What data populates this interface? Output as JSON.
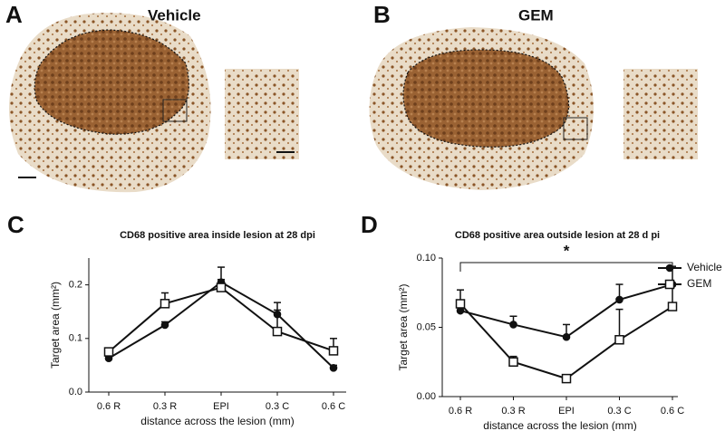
{
  "panels": {
    "a": {
      "label": "A",
      "title": "Vehicle"
    },
    "b": {
      "label": "B",
      "title": "GEM"
    }
  },
  "chart_data": [
    {
      "type": "line",
      "panel": "C",
      "title": "CD68 positive area inside lesion at 28 dpi",
      "ylabel": "Target area (mm²)",
      "xlabel": "distance across the lesion (mm)",
      "categories": [
        "0.6 R",
        "0.3 R",
        "EPI",
        "0.3 C",
        "0.6 C"
      ],
      "ylim": [
        0,
        0.25
      ],
      "yticks": [
        {
          "value": 0,
          "label": "0.0"
        },
        0.1,
        0.2
      ],
      "legend": false,
      "series": [
        {
          "name": "Vehicle",
          "color": "#111111",
          "marker": "circle",
          "values": [
            0.063,
            0.125,
            0.205,
            0.145,
            0.045
          ],
          "errors": [
            0.004,
            0.006,
            0.028,
            0.022,
            0.005
          ]
        },
        {
          "name": "GEM",
          "color": "#111111",
          "marker": "square",
          "values": [
            0.075,
            0.165,
            0.195,
            0.113,
            0.077
          ],
          "errors": [
            0.005,
            0.02,
            0.015,
            0.04,
            0.023
          ]
        }
      ]
    },
    {
      "type": "line",
      "panel": "D",
      "title": "CD68 positive area outside lesion at 28 d pi",
      "ylabel": "Target area (mm²)",
      "xlabel": "distance across the lesion (mm)",
      "categories": [
        "0.6 R",
        "0.3 R",
        "EPI",
        "0.3 C",
        "0.6 C"
      ],
      "ylim": [
        0,
        0.1
      ],
      "yticks": [
        {
          "value": 0,
          "label": "0.00"
        },
        0.05,
        {
          "value": 0.1,
          "label": "0.10"
        }
      ],
      "legend": "right",
      "annotations": [
        "*"
      ],
      "series": [
        {
          "name": "Vehicle",
          "color": "#111111",
          "marker": "circle",
          "values": [
            0.062,
            0.052,
            0.043,
            0.07,
            0.081
          ],
          "errors": [
            0.003,
            0.006,
            0.009,
            0.011,
            0.013
          ]
        },
        {
          "name": "GEM",
          "color": "#111111",
          "marker": "square",
          "values": [
            0.067,
            0.025,
            0.013,
            0.041,
            0.065
          ],
          "errors": [
            0.01,
            0.004,
            0.001,
            0.022,
            0.015
          ]
        }
      ]
    }
  ]
}
